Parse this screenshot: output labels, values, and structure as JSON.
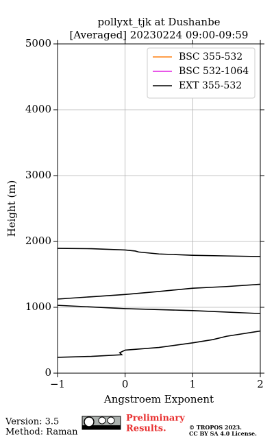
{
  "chart_data": {
    "type": "line",
    "title": "pollyxt_tjk at Dushanbe",
    "subtitle": "[Averaged] 20230224 09:00-09:59",
    "xlabel": "Angstroem Exponent",
    "ylabel": "Height (m)",
    "xlim": [
      -1,
      2
    ],
    "ylim": [
      0,
      5000
    ],
    "xticks": [
      {
        "value": -1,
        "label": "−1"
      },
      0,
      1,
      2
    ],
    "yticks": [
      0,
      1000,
      2000,
      3000,
      4000,
      5000
    ],
    "grid": true,
    "legend": "upper right",
    "series": [
      {
        "name": "BSC 355-532",
        "color": "#ff7f0e",
        "x": [],
        "values": []
      },
      {
        "name": "BSC 532-1064",
        "color": "#e020e0",
        "x": [],
        "values": []
      },
      {
        "name": "EXT 355-532",
        "color": "#000000",
        "x": [
          -1,
          -0.5,
          0,
          0.15,
          0.2,
          0.5,
          1,
          1.5,
          2,
          null,
          -1,
          -0.5,
          0,
          0.5,
          1,
          1.5,
          2,
          null,
          -1,
          0,
          1,
          2,
          null,
          -1,
          -0.5,
          -0.05,
          -0.08,
          0,
          0.5,
          1,
          1.3,
          1.5,
          2
        ],
        "values": [
          1895,
          1890,
          1870,
          1855,
          1840,
          1810,
          1790,
          1780,
          1770,
          null,
          1125,
          1160,
          1195,
          1240,
          1290,
          1315,
          1350,
          null,
          1030,
          980,
          950,
          905,
          null,
          240,
          255,
          280,
          310,
          350,
          390,
          460,
          510,
          560,
          640
        ]
      }
    ]
  },
  "footer": {
    "version": "Version: 3.5",
    "method": "Method: Raman",
    "preliminary": "Preliminary",
    "results": "Results.",
    "copyright": "© TROPOS 2023.",
    "license": "CC BY SA 4.0 License."
  }
}
